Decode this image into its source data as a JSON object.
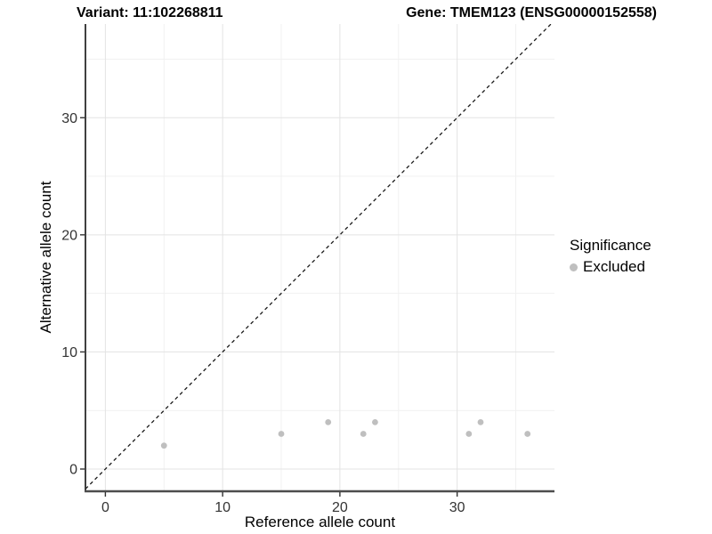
{
  "header": {
    "left_title": "Variant: 11:102268811",
    "right_title": "Gene: TMEM123 (ENSG00000152558)"
  },
  "chart_data": {
    "type": "scatter",
    "xlabel": "Reference allele count",
    "ylabel": "Alternative allele count",
    "xlim": [
      -1.7,
      38.3
    ],
    "ylim": [
      -1.9,
      38.0
    ],
    "x_ticks": [
      0,
      10,
      20,
      30
    ],
    "y_ticks": [
      0,
      10,
      20,
      30
    ],
    "x_minor_ticks": [
      5,
      15,
      25,
      35
    ],
    "y_minor_ticks": [
      5,
      15,
      25,
      35
    ],
    "grid": true,
    "series": [
      {
        "name": "Excluded",
        "color": "#bfbfbf",
        "points": [
          [
            5,
            2
          ],
          [
            15,
            3
          ],
          [
            19,
            4
          ],
          [
            22,
            3
          ],
          [
            23,
            4
          ],
          [
            31,
            3
          ],
          [
            32,
            4
          ],
          [
            36,
            3
          ]
        ]
      }
    ],
    "reference_line": {
      "slope": 1,
      "intercept": 0,
      "style": "dashed",
      "color": "#1a1a1a"
    },
    "legend": {
      "title": "Significance",
      "position": "right",
      "entries": [
        {
          "label": "Excluded",
          "color": "#bfbfbf"
        }
      ]
    },
    "colors": {
      "grid_major": "#e3e3e3",
      "grid_minor": "#f1f1f1",
      "axis_line": "#2b2b2b",
      "tick_label": "#333333"
    }
  }
}
